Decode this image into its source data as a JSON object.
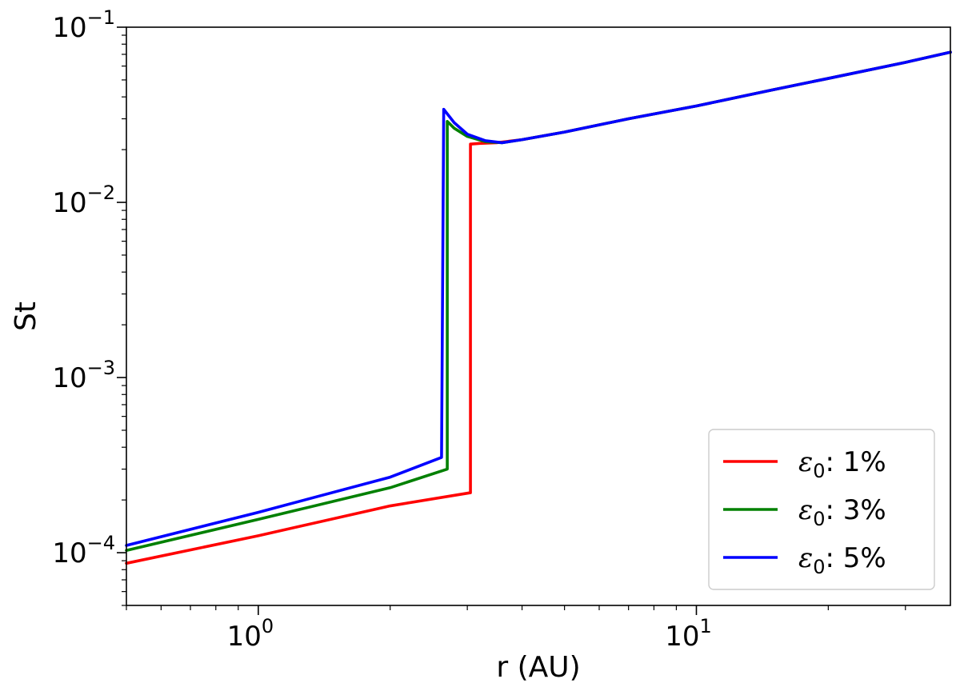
{
  "chart_data": {
    "type": "line",
    "title": "",
    "xlabel": "r (AU)",
    "ylabel": "St",
    "xscale": "log",
    "yscale": "log",
    "xlim": [
      0.5,
      38
    ],
    "ylim": [
      5e-05,
      0.1
    ],
    "grid": false,
    "legend_position": "lower-right",
    "x_ticks": [
      {
        "base": "10",
        "exp": "0",
        "value": 1
      },
      {
        "base": "10",
        "exp": "1",
        "value": 10
      }
    ],
    "y_ticks": [
      {
        "base": "10",
        "exp": "−4",
        "value": 0.0001
      },
      {
        "base": "10",
        "exp": "−3",
        "value": 0.001
      },
      {
        "base": "10",
        "exp": "−2",
        "value": 0.01
      },
      {
        "base": "10",
        "exp": "−1",
        "value": 0.1
      }
    ],
    "series": [
      {
        "name": "ε",
        "name_sub": "0",
        "name_suffix": ": 1%",
        "color": "#ff0000",
        "points": [
          [
            0.5,
            8.7e-05
          ],
          [
            1.0,
            0.000125
          ],
          [
            2.0,
            0.000185
          ],
          [
            3.05,
            0.00022
          ],
          [
            3.05,
            0.0215
          ],
          [
            3.2,
            0.0217
          ],
          [
            3.5,
            0.0219
          ],
          [
            4.0,
            0.0228
          ],
          [
            5.0,
            0.0252
          ],
          [
            7.0,
            0.03
          ],
          [
            10.0,
            0.0355
          ],
          [
            15.0,
            0.044
          ],
          [
            20.0,
            0.051
          ],
          [
            30.0,
            0.063
          ],
          [
            38.0,
            0.072
          ]
        ]
      },
      {
        "name": "ε",
        "name_sub": "0",
        "name_suffix": ": 3%",
        "color": "#008000",
        "points": [
          [
            0.5,
            0.000103
          ],
          [
            1.0,
            0.000155
          ],
          [
            2.0,
            0.000235
          ],
          [
            2.7,
            0.0003
          ],
          [
            2.7,
            0.029
          ],
          [
            2.8,
            0.0265
          ],
          [
            3.0,
            0.0238
          ],
          [
            3.3,
            0.0222
          ],
          [
            3.6,
            0.0219
          ],
          [
            4.0,
            0.0228
          ],
          [
            5.0,
            0.0252
          ],
          [
            7.0,
            0.03
          ],
          [
            10.0,
            0.0355
          ],
          [
            15.0,
            0.044
          ],
          [
            20.0,
            0.051
          ],
          [
            30.0,
            0.063
          ],
          [
            38.0,
            0.072
          ]
        ]
      },
      {
        "name": "ε",
        "name_sub": "0",
        "name_suffix": ": 5%",
        "color": "#0000ff",
        "points": [
          [
            0.5,
            0.00011
          ],
          [
            1.0,
            0.00017
          ],
          [
            2.0,
            0.00027
          ],
          [
            2.62,
            0.00035
          ],
          [
            2.65,
            0.034
          ],
          [
            2.8,
            0.0285
          ],
          [
            3.0,
            0.0245
          ],
          [
            3.3,
            0.0225
          ],
          [
            3.6,
            0.0219
          ],
          [
            4.0,
            0.0228
          ],
          [
            5.0,
            0.0252
          ],
          [
            7.0,
            0.03
          ],
          [
            10.0,
            0.0355
          ],
          [
            15.0,
            0.044
          ],
          [
            20.0,
            0.051
          ],
          [
            30.0,
            0.063
          ],
          [
            38.0,
            0.072
          ]
        ]
      }
    ]
  }
}
